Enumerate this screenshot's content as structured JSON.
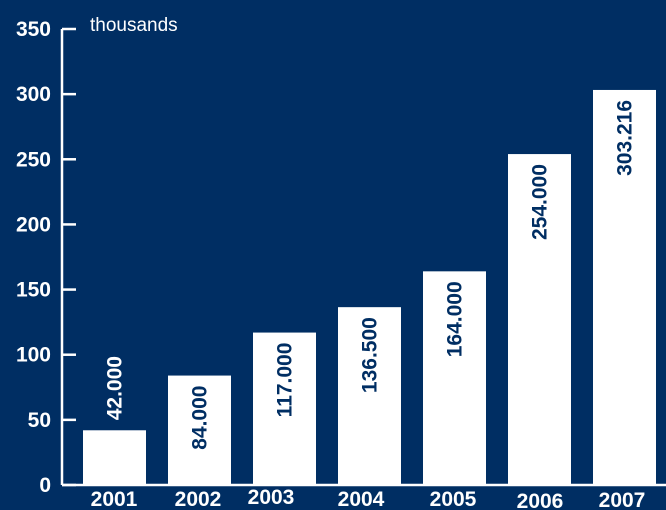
{
  "colors": {
    "background": "#002e63",
    "bar": "#ffffff",
    "axis": "#ffffff",
    "value_label_inside": "#002e63",
    "value_label_above": "#ffffff"
  },
  "chart_data": {
    "type": "bar",
    "unit_label": "thousands",
    "categories": [
      "2001",
      "2002",
      "2003",
      "2004",
      "2005",
      "2006",
      "2007"
    ],
    "values": [
      42.0,
      84.0,
      117.0,
      136.5,
      164.0,
      254.0,
      303.216
    ],
    "value_labels": [
      "42.000",
      "84.000",
      "117.000",
      "136.500",
      "164.000",
      "254.000",
      "303.216"
    ],
    "yticks": [
      0,
      50,
      100,
      150,
      200,
      250,
      300,
      350
    ],
    "ylim": [
      0,
      350
    ],
    "grid": false,
    "legend": "none"
  }
}
